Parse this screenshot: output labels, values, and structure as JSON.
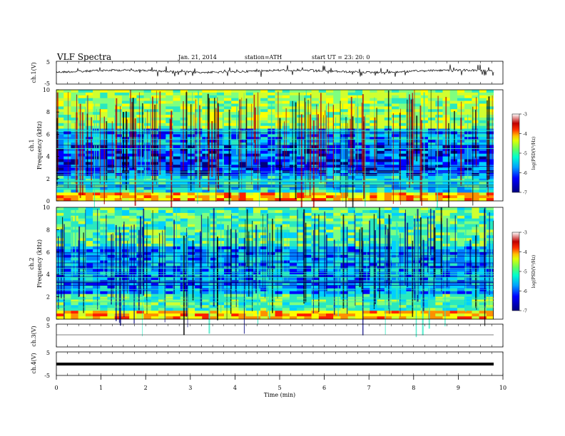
{
  "header": {
    "title": "VLF  Spectra",
    "date": "Jan. 21, 2014",
    "station": "station=ATH",
    "start": "start  UT  =    23: 20: 0"
  },
  "panels": {
    "ch1_ylabel": "ch.1(V)",
    "spec1_ylabel_a": "ch.1",
    "spec1_ylabel_b": "Frequency  (kHz)",
    "spec2_ylabel_a": "ch.2",
    "spec2_ylabel_b": "Frequency  (kHz)",
    "ch3_ylabel": "ch.3(V)",
    "ch4_ylabel": "ch.4(V)",
    "xlabel": "Time  (min)",
    "colorbar_label": "log(PSD(V²/Hz)"
  },
  "chart_data": [
    {
      "type": "line",
      "name": "ch1-waveform",
      "ylabel": "ch.1(V)",
      "ylim": [
        -5,
        5
      ],
      "yticks": [
        "5",
        "-5"
      ],
      "xlim": [
        0,
        10
      ]
    },
    {
      "type": "heatmap",
      "name": "ch1-spectrogram",
      "ylabel": "Frequency  (kHz)",
      "ylim": [
        0,
        10
      ],
      "yticks": [
        "0",
        "2",
        "4",
        "6",
        "8",
        "10"
      ],
      "xlim": [
        0,
        10
      ],
      "colorbar": {
        "range": [
          -7,
          -3
        ],
        "ticks": [
          "-3",
          "-4",
          "-5",
          "-6",
          "-7"
        ]
      }
    },
    {
      "type": "heatmap",
      "name": "ch2-spectrogram",
      "ylabel": "Frequency  (kHz)",
      "ylim": [
        0,
        10
      ],
      "yticks": [
        "0",
        "2",
        "4",
        "6",
        "8",
        "10"
      ],
      "xlim": [
        0,
        10
      ],
      "colorbar": {
        "range": [
          -7,
          -3
        ],
        "ticks": [
          "-3",
          "-4",
          "-5",
          "-6",
          "-7"
        ]
      }
    },
    {
      "type": "line",
      "name": "ch3-waveform",
      "ylabel": "ch.3(V)",
      "ylim": [
        -5,
        5
      ],
      "yticks": [
        "5"
      ],
      "xlim": [
        0,
        10
      ]
    },
    {
      "type": "line",
      "name": "ch4-waveform",
      "ylabel": "ch.4(V)",
      "ylim": [
        -5,
        5
      ],
      "yticks": [
        "5",
        "-5"
      ],
      "xlim": [
        0,
        10
      ],
      "xlabel": "Time  (min)",
      "xticks": [
        "0",
        "1",
        "2",
        "3",
        "4",
        "5",
        "6",
        "7",
        "8",
        "9",
        "10"
      ]
    }
  ],
  "colors": {
    "colormap": [
      "#00007f",
      "#0000ff",
      "#0080ff",
      "#00d0ff",
      "#2ae8c0",
      "#7fff7f",
      "#d0ff30",
      "#ffff00",
      "#ff9000",
      "#ff2000",
      "#b00000",
      "#ffffff"
    ]
  }
}
